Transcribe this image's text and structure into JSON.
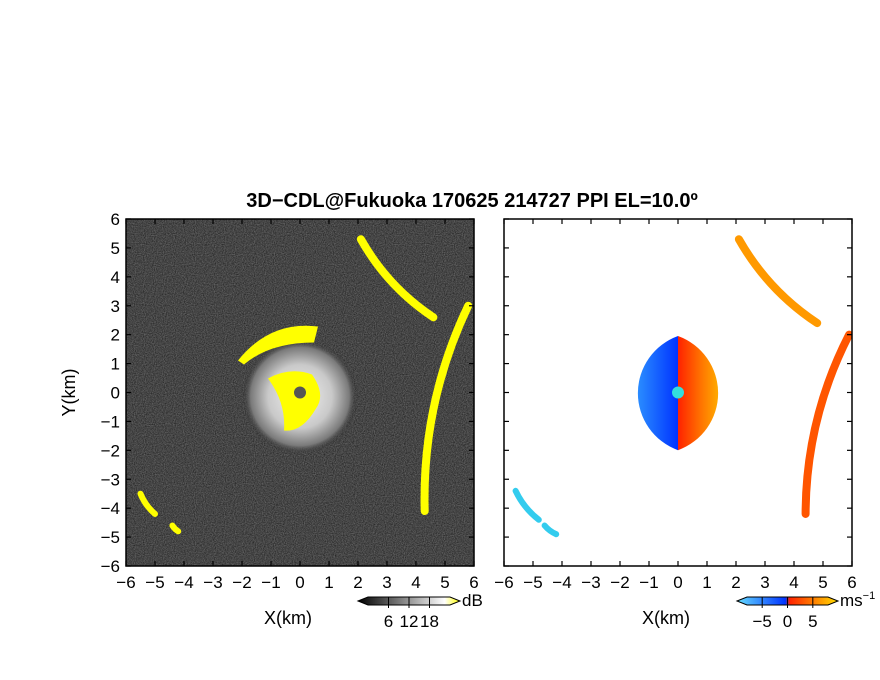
{
  "title": "3D−CDL@Fukuoka 170625 214727 PPI EL=10.0º",
  "chart_data": [
    {
      "type": "heatmap",
      "variable": "reflectivity",
      "xlabel": "X(km)",
      "ylabel": "Y(km)",
      "xlim": [
        -6,
        6
      ],
      "ylim": [
        -6,
        6
      ],
      "xticks": [
        -6,
        -5,
        -4,
        -3,
        -2,
        -1,
        0,
        1,
        2,
        3,
        4,
        5,
        6
      ],
      "yticks": [
        -6,
        -5,
        -4,
        -3,
        -2,
        -1,
        0,
        1,
        2,
        3,
        4,
        5,
        6
      ],
      "colorbar": {
        "unit": "dB",
        "ticks": [
          6,
          12,
          18
        ],
        "range": [
          0,
          24
        ],
        "colors": [
          "#000000",
          "#ffffff",
          "#ffff00"
        ]
      },
      "features": {
        "central_echo": {
          "center": [
            0,
            0
          ],
          "radius_km": 2.0
        },
        "saturated_core": {
          "center": [
            0,
            0
          ],
          "radius_km": 0.9
        },
        "arcs": [
          {
            "from": [
              2.1,
              5.3
            ],
            "to": [
              4.6,
              2.6
            ]
          },
          {
            "from": [
              5.8,
              3.0
            ],
            "to": [
              4.3,
              -4.1
            ]
          },
          {
            "from": [
              -5.5,
              -3.5
            ],
            "to": [
              -5.0,
              -4.2
            ]
          },
          {
            "from": [
              -4.4,
              -4.6
            ],
            "to": [
              -4.2,
              -4.8
            ]
          }
        ]
      }
    },
    {
      "type": "heatmap",
      "variable": "doppler velocity",
      "xlabel": "X(km)",
      "xlim": [
        -6,
        6
      ],
      "ylim": [
        -6,
        6
      ],
      "xticks": [
        -6,
        -5,
        -4,
        -3,
        -2,
        -1,
        0,
        1,
        2,
        3,
        4,
        5,
        6
      ],
      "colorbar": {
        "unit": "ms",
        "unit_exp": "−1",
        "ticks": [
          -5,
          0,
          5
        ],
        "range": [
          -8,
          8
        ],
        "colors": [
          "#66ddff",
          "#0044ff",
          "#ff0000",
          "#ffdd00"
        ]
      },
      "features": {
        "central_echo": {
          "center": [
            0,
            0
          ],
          "radius_km": 2.1,
          "negative_side": "west",
          "positive_side": "east"
        },
        "arcs": [
          {
            "from": [
              2.1,
              5.3
            ],
            "to": [
              4.8,
              2.4
            ]
          },
          {
            "from": [
              5.9,
              2.0
            ],
            "to": [
              4.4,
              -4.2
            ]
          },
          {
            "from": [
              -5.6,
              -3.4
            ],
            "to": [
              -4.8,
              -4.4
            ]
          },
          {
            "from": [
              -4.6,
              -4.6
            ],
            "to": [
              -4.2,
              -4.9
            ]
          }
        ]
      }
    }
  ],
  "colors": {
    "axis": "#000000",
    "core": "#ffff00",
    "site_marker": "#555555",
    "site_marker_vel": "#33dddd"
  }
}
